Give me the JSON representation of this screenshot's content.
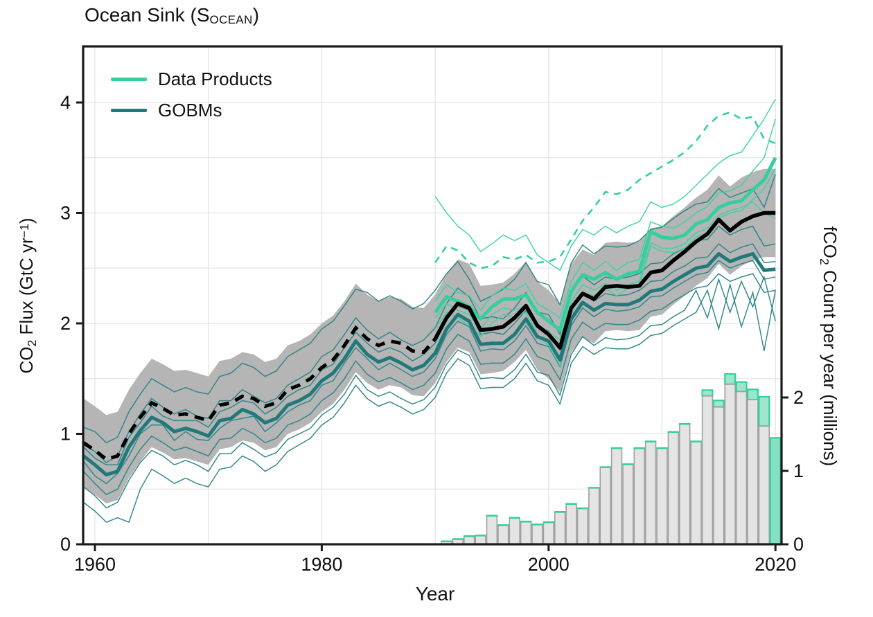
{
  "title": {
    "main": "Ocean Sink (S",
    "sub": "OCEAN",
    "close": ")"
  },
  "legend": [
    {
      "label": "Data Products",
      "color": "#34cf9f"
    },
    {
      "label": "GOBMs",
      "color": "#21797a"
    }
  ],
  "axes": {
    "x": {
      "label": "Year",
      "ticks": [
        1960,
        1980,
        2000,
        2020
      ],
      "gridlines": [
        1960,
        1970,
        1980,
        1990,
        2000,
        2010,
        2020
      ],
      "min": 1959,
      "max": 2020.5
    },
    "y_left": {
      "label_pre": "CO",
      "label_sub": "2",
      "label_mid": " Flux (GtC yr",
      "label_sup": "−1",
      "label_post": ")",
      "ticks": [
        0,
        1,
        2,
        3,
        4
      ],
      "min": 0,
      "max": 4.5,
      "grid_step": 0.5
    },
    "y_right": {
      "label_pre": "fCO",
      "label_sub": "2",
      "label_post": " Count per year (millions)",
      "ticks": [
        0,
        1,
        2
      ],
      "min": 0,
      "max": 6.78
    }
  },
  "colors": {
    "products_green": "#34cf9f",
    "gobm_teal": "#21797a",
    "member_teal": "#2a8486",
    "member_green": "#3cd2a4",
    "black": "#000000",
    "band_gray": "#b5b5b5",
    "grid": "#e4e4e4",
    "bar_fill": "#e4e4e4",
    "bar_stroke": "#a0a0a0",
    "bar_cap_fill": "#9de6cd",
    "bar_final_fill": "#86dfc3",
    "spine": "#1a1a1a"
  },
  "chart_data": {
    "type": "line+bar",
    "title": "Ocean Sink (SOCEAN)",
    "xlabel": "Year",
    "ylabel_left": "CO2 Flux (GtC yr-1)",
    "ylabel_right": "fCO2 Count per year (millions)",
    "x_range": [
      1959,
      2020.5
    ],
    "y_left_range": [
      0,
      4.5
    ],
    "y_right_range": [
      0,
      6.78
    ],
    "legend_position": "top-left",
    "grid": true,
    "band_halfwidth": 0.4,
    "years": [
      1959,
      1960,
      1961,
      1962,
      1963,
      1964,
      1965,
      1966,
      1967,
      1968,
      1969,
      1970,
      1971,
      1972,
      1973,
      1974,
      1975,
      1976,
      1977,
      1978,
      1979,
      1980,
      1981,
      1982,
      1983,
      1984,
      1985,
      1986,
      1987,
      1988,
      1989,
      1990,
      1991,
      1992,
      1993,
      1994,
      1995,
      1996,
      1997,
      1998,
      1999,
      2000,
      2001,
      2002,
      2003,
      2004,
      2005,
      2006,
      2007,
      2008,
      2009,
      2010,
      2011,
      2012,
      2013,
      2014,
      2015,
      2016,
      2017,
      2018,
      2019,
      2020
    ],
    "best_estimate": {
      "name": "Best estimate (dashed before 1990, solid after)",
      "dashed_until_year": 1990,
      "values": [
        0.92,
        0.85,
        0.77,
        0.8,
        1.0,
        1.15,
        1.28,
        1.23,
        1.17,
        1.18,
        1.15,
        1.12,
        1.26,
        1.28,
        1.34,
        1.32,
        1.25,
        1.28,
        1.4,
        1.44,
        1.5,
        1.6,
        1.67,
        1.8,
        1.96,
        1.86,
        1.8,
        1.84,
        1.82,
        1.75,
        1.74,
        1.86,
        2.05,
        2.18,
        2.14,
        1.94,
        1.95,
        1.97,
        2.05,
        2.16,
        1.98,
        1.9,
        1.78,
        2.14,
        2.27,
        2.22,
        2.33,
        2.34,
        2.33,
        2.34,
        2.46,
        2.48,
        2.57,
        2.65,
        2.74,
        2.81,
        2.94,
        2.84,
        2.92,
        2.97,
        3.0,
        3.0
      ]
    },
    "gobm_mean": {
      "name": "GOBMs mean",
      "values": [
        0.8,
        0.72,
        0.63,
        0.66,
        0.88,
        1.03,
        1.15,
        1.1,
        1.02,
        1.05,
        1.02,
        0.98,
        1.12,
        1.14,
        1.22,
        1.18,
        1.1,
        1.14,
        1.26,
        1.3,
        1.36,
        1.48,
        1.55,
        1.68,
        1.84,
        1.72,
        1.65,
        1.69,
        1.64,
        1.58,
        1.62,
        1.73,
        1.95,
        2.08,
        2.02,
        1.81,
        1.82,
        1.82,
        1.9,
        2.04,
        1.88,
        1.84,
        1.67,
        2.04,
        2.19,
        2.12,
        2.18,
        2.17,
        2.17,
        2.21,
        2.29,
        2.31,
        2.38,
        2.44,
        2.5,
        2.52,
        2.63,
        2.56,
        2.6,
        2.63,
        2.48,
        2.49
      ]
    },
    "gobm_members": [
      [
        1.06,
        1.02,
        0.92,
        0.97,
        1.2,
        1.36,
        1.5,
        1.44,
        1.38,
        1.42,
        1.38,
        1.36,
        1.52,
        1.55,
        1.64,
        1.6,
        1.52,
        1.57,
        1.7,
        1.76,
        1.82,
        1.95,
        2.02,
        2.16,
        2.31,
        2.28,
        2.2,
        2.25,
        2.2,
        2.13,
        2.18,
        2.3,
        2.45,
        2.56,
        2.4,
        2.2,
        2.25,
        2.31,
        2.4,
        2.55,
        2.38,
        2.35,
        2.17,
        2.55,
        2.71,
        2.63,
        2.7,
        2.69,
        2.7,
        2.75,
        2.85,
        2.87,
        2.95,
        3.02,
        3.08,
        3.1,
        3.22,
        3.14,
        3.18,
        3.22,
        3.05,
        3.35
      ],
      [
        0.9,
        0.84,
        0.74,
        0.8,
        1.02,
        1.18,
        1.32,
        1.24,
        1.18,
        1.22,
        1.16,
        1.14,
        1.3,
        1.3,
        1.4,
        1.34,
        1.28,
        1.32,
        1.44,
        1.5,
        1.56,
        1.7,
        1.76,
        1.9,
        2.05,
        1.94,
        1.86,
        1.92,
        1.85,
        1.8,
        1.85,
        1.96,
        2.18,
        2.32,
        2.24,
        2.04,
        2.06,
        2.04,
        2.14,
        2.28,
        2.1,
        2.08,
        1.9,
        2.28,
        2.43,
        2.35,
        2.42,
        2.4,
        2.42,
        2.45,
        2.54,
        2.55,
        2.63,
        2.68,
        2.75,
        2.76,
        2.88,
        2.8,
        2.85,
        2.88,
        2.7,
        2.72
      ],
      [
        0.88,
        0.78,
        0.72,
        0.72,
        0.97,
        1.1,
        1.25,
        1.16,
        1.12,
        1.12,
        1.12,
        1.06,
        1.2,
        1.24,
        1.3,
        1.28,
        1.18,
        1.24,
        1.34,
        1.4,
        1.44,
        1.58,
        1.63,
        1.78,
        1.92,
        1.82,
        1.74,
        1.78,
        1.74,
        1.66,
        1.72,
        1.82,
        2.04,
        2.16,
        2.12,
        1.9,
        1.92,
        1.9,
        2.0,
        2.12,
        1.97,
        1.93,
        1.76,
        2.13,
        2.28,
        2.2,
        2.27,
        2.25,
        2.26,
        2.3,
        2.38,
        2.39,
        2.47,
        2.52,
        2.59,
        2.6,
        2.72,
        2.64,
        2.69,
        2.72,
        2.55,
        2.56
      ],
      [
        0.75,
        0.62,
        0.55,
        0.64,
        0.8,
        1.0,
        1.08,
        1.08,
        0.94,
        1.02,
        0.95,
        0.94,
        1.05,
        1.12,
        1.14,
        1.16,
        1.02,
        1.1,
        1.2,
        1.26,
        1.3,
        1.44,
        1.48,
        1.64,
        1.78,
        1.68,
        1.58,
        1.64,
        1.58,
        1.52,
        1.56,
        1.68,
        1.9,
        2.02,
        1.97,
        1.75,
        1.77,
        1.76,
        1.84,
        1.98,
        1.82,
        1.79,
        1.61,
        1.98,
        2.14,
        2.06,
        2.13,
        2.11,
        2.12,
        2.15,
        2.24,
        2.25,
        2.32,
        2.38,
        2.44,
        2.46,
        2.57,
        2.5,
        2.54,
        2.57,
        2.4,
        2.42
      ],
      [
        0.66,
        0.55,
        0.45,
        0.5,
        0.7,
        0.86,
        0.98,
        0.92,
        0.85,
        0.88,
        0.84,
        0.8,
        0.95,
        0.96,
        1.05,
        1.0,
        0.92,
        0.96,
        1.08,
        1.12,
        1.18,
        1.3,
        1.37,
        1.5,
        1.66,
        1.54,
        1.47,
        1.51,
        1.46,
        1.4,
        1.44,
        1.55,
        1.77,
        1.9,
        1.84,
        1.63,
        1.64,
        1.64,
        1.72,
        1.86,
        1.7,
        1.66,
        1.49,
        1.86,
        2.01,
        1.94,
        2.0,
        1.99,
        1.99,
        2.03,
        2.11,
        2.13,
        2.2,
        2.26,
        2.32,
        2.34,
        2.45,
        2.38,
        2.42,
        2.45,
        2.28,
        2.3
      ],
      [
        0.52,
        0.44,
        0.33,
        0.38,
        0.58,
        0.74,
        0.85,
        0.8,
        0.72,
        0.76,
        0.72,
        0.66,
        0.82,
        0.82,
        0.92,
        0.86,
        0.79,
        0.83,
        0.95,
        1.0,
        1.05,
        1.17,
        1.24,
        1.36,
        1.53,
        1.4,
        1.34,
        1.38,
        1.32,
        1.27,
        1.31,
        1.42,
        1.63,
        1.76,
        1.71,
        1.5,
        1.51,
        1.5,
        1.58,
        1.72,
        1.56,
        1.53,
        1.35,
        1.72,
        1.88,
        1.8,
        1.87,
        1.85,
        1.86,
        1.89,
        1.98,
        1.99,
        2.06,
        2.12,
        2.3,
        2.05,
        2.4,
        2.1,
        2.38,
        2.15,
        2.42,
        2.02
      ],
      [
        0.38,
        0.3,
        0.2,
        0.24,
        0.2,
        0.5,
        0.68,
        0.62,
        0.55,
        0.6,
        0.55,
        0.52,
        0.68,
        0.7,
        0.8,
        0.75,
        0.66,
        0.72,
        0.84,
        0.9,
        0.96,
        1.08,
        1.15,
        1.28,
        1.44,
        1.32,
        1.25,
        1.29,
        1.24,
        1.18,
        1.22,
        1.33,
        1.55,
        1.68,
        1.62,
        1.41,
        1.42,
        1.42,
        1.5,
        1.64,
        1.48,
        1.44,
        1.27,
        1.64,
        1.79,
        1.72,
        1.78,
        1.77,
        1.77,
        1.81,
        1.89,
        1.91,
        1.98,
        2.04,
        2.1,
        2.3,
        1.95,
        2.35,
        1.97,
        2.28,
        1.75,
        2.3
      ]
    ],
    "product_years": [
      1990,
      1991,
      1992,
      1993,
      1994,
      1995,
      1996,
      1997,
      1998,
      1999,
      2000,
      2001,
      2002,
      2003,
      2004,
      2005,
      2006,
      2007,
      2008,
      2009,
      2010,
      2011,
      2012,
      2013,
      2014,
      2015,
      2016,
      2017,
      2018,
      2019,
      2020
    ],
    "product_mean": {
      "name": "Data Products mean",
      "values": [
        2.1,
        2.24,
        2.2,
        2.15,
        2.04,
        2.15,
        2.22,
        2.22,
        2.26,
        2.1,
        2.02,
        1.94,
        2.29,
        2.44,
        2.4,
        2.46,
        2.4,
        2.45,
        2.47,
        2.83,
        2.78,
        2.77,
        2.8,
        2.9,
        2.94,
        3.05,
        3.09,
        3.11,
        3.21,
        3.3,
        3.5
      ]
    },
    "product_dashed": {
      "name": "Data Product (dashed)",
      "values": [
        2.55,
        2.7,
        2.66,
        2.55,
        2.5,
        2.52,
        2.6,
        2.58,
        2.62,
        2.55,
        2.56,
        2.6,
        2.76,
        2.93,
        3.05,
        3.19,
        3.17,
        3.21,
        3.3,
        3.36,
        3.42,
        3.48,
        3.55,
        3.65,
        3.79,
        3.88,
        3.91,
        3.85,
        3.87,
        3.67,
        3.63
      ]
    },
    "product_members": [
      [
        3.15,
        3.0,
        2.88,
        2.8,
        2.65,
        2.72,
        2.8,
        2.75,
        2.8,
        2.62,
        2.55,
        2.48,
        2.7,
        2.85,
        2.8,
        2.88,
        2.82,
        2.88,
        2.92,
        3.1,
        3.05,
        3.08,
        3.15,
        3.25,
        3.35,
        3.45,
        3.52,
        3.55,
        3.7,
        3.85,
        4.03
      ],
      [
        2.2,
        2.35,
        2.28,
        2.25,
        2.12,
        2.25,
        2.32,
        2.3,
        2.36,
        2.18,
        2.12,
        2.05,
        2.38,
        2.55,
        2.48,
        2.56,
        2.48,
        2.55,
        2.58,
        2.92,
        2.88,
        2.86,
        2.92,
        3.0,
        3.06,
        3.18,
        3.2,
        3.25,
        3.38,
        3.5,
        3.85
      ],
      [
        1.95,
        2.1,
        2.05,
        1.98,
        1.88,
        2.0,
        2.08,
        2.06,
        2.1,
        1.9,
        1.8,
        1.62,
        2.1,
        2.28,
        2.25,
        2.32,
        2.25,
        2.32,
        2.35,
        2.7,
        2.65,
        2.64,
        2.68,
        2.78,
        2.82,
        2.95,
        3.0,
        3.02,
        3.12,
        3.22,
        3.4
      ],
      [
        2.05,
        2.18,
        2.12,
        2.08,
        1.95,
        2.08,
        2.14,
        2.12,
        2.16,
        2.0,
        1.92,
        1.85,
        2.2,
        2.35,
        2.3,
        2.36,
        2.3,
        2.35,
        2.38,
        2.73,
        2.68,
        2.68,
        2.72,
        2.82,
        2.86,
        2.98,
        3.02,
        3.05,
        3.1,
        3.0,
        2.95
      ]
    ],
    "fco2_bars": {
      "name": "fCO2 observation count per year (millions), right axis",
      "years": [
        1991,
        1992,
        1993,
        1994,
        1995,
        1996,
        1997,
        1998,
        1999,
        2000,
        2001,
        2002,
        2003,
        2004,
        2005,
        2006,
        2007,
        2008,
        2009,
        2010,
        2011,
        2012,
        2013,
        2014,
        2015,
        2016,
        2017,
        2018,
        2019,
        2020
      ],
      "total": [
        0.04,
        0.07,
        0.11,
        0.12,
        0.39,
        0.26,
        0.36,
        0.31,
        0.27,
        0.3,
        0.44,
        0.55,
        0.49,
        0.77,
        1.05,
        1.31,
        1.09,
        1.31,
        1.4,
        1.31,
        1.53,
        1.64,
        1.4,
        2.1,
        1.96,
        2.32,
        2.21,
        2.11,
        2.01,
        1.45
      ],
      "used": [
        0.04,
        0.07,
        0.11,
        0.12,
        0.39,
        0.26,
        0.36,
        0.31,
        0.27,
        0.3,
        0.44,
        0.55,
        0.49,
        0.77,
        1.05,
        1.31,
        1.09,
        1.31,
        1.4,
        1.31,
        1.53,
        1.64,
        1.4,
        2.02,
        1.87,
        2.18,
        2.08,
        1.97,
        1.61,
        0
      ]
    }
  }
}
